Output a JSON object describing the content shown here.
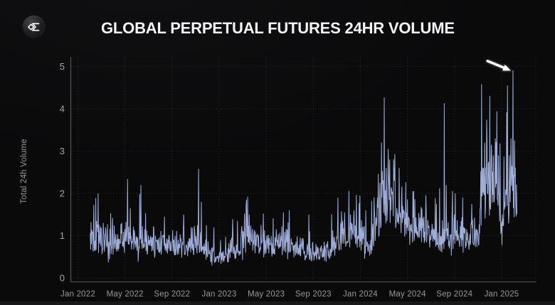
{
  "title": "GLOBAL PERPETUAL FUTURES 24HR VOLUME",
  "logo": {
    "icon": "sigma-diamond"
  },
  "colors": {
    "background": "#0a0a0b",
    "line": "#a6b7e4",
    "grid": "#2d2d2d",
    "axis": "#4d4d4d",
    "title": "#f4f4f6",
    "y_tick_label": "#a3a3a3",
    "x_tick_label": "#969696",
    "axis_name": "#959595",
    "arrow": "#ffffff",
    "footer_band": "#18181a"
  },
  "chart_data": {
    "type": "line",
    "title": "GLOBAL PERPETUAL FUTURES 24HR VOLUME",
    "ylabel": "Total 24h Volume",
    "ylim": [
      0,
      5
    ],
    "y_ticks": [
      0,
      1,
      2,
      3,
      4,
      5
    ],
    "x_ticks": [
      "Jan 2022",
      "May 2022",
      "Sep 2022",
      "Jan 2023",
      "May 2023",
      "Sep 2023",
      "Jan 2024",
      "May 2024",
      "Sep 2024",
      "Jan 2025"
    ],
    "x_tick_interval_months": 4,
    "grid": "dotted",
    "legend": "none",
    "series_name": "Global perpetual futures 24h volume",
    "x_unit": "months since Jan 2022",
    "x_range_data": [
      1.05,
      37.3
    ],
    "points_per_month": 30,
    "baseline_anchors": [
      [
        1.05,
        1.1
      ],
      [
        1.4,
        0.92
      ],
      [
        2.2,
        0.85
      ],
      [
        3.2,
        0.8
      ],
      [
        4.0,
        0.95
      ],
      [
        4.6,
        0.9
      ],
      [
        5.6,
        0.85
      ],
      [
        6.6,
        0.75
      ],
      [
        7.6,
        0.82
      ],
      [
        8.6,
        0.72
      ],
      [
        9.6,
        0.72
      ],
      [
        10.1,
        0.9
      ],
      [
        10.6,
        0.78
      ],
      [
        11.4,
        0.55
      ],
      [
        12.2,
        0.45
      ],
      [
        13.0,
        0.6
      ],
      [
        13.9,
        0.85
      ],
      [
        14.5,
        0.95
      ],
      [
        15.3,
        0.82
      ],
      [
        16.3,
        0.75
      ],
      [
        17.3,
        0.82
      ],
      [
        18.3,
        0.75
      ],
      [
        19.3,
        0.62
      ],
      [
        20.3,
        0.55
      ],
      [
        21.3,
        0.62
      ],
      [
        22.0,
        0.85
      ],
      [
        22.8,
        0.95
      ],
      [
        23.7,
        1.0
      ],
      [
        24.2,
        1.0
      ],
      [
        24.7,
        0.7
      ],
      [
        25.2,
        1.0
      ],
      [
        25.6,
        1.35
      ],
      [
        25.95,
        1.8
      ],
      [
        26.3,
        2.0
      ],
      [
        26.7,
        1.7
      ],
      [
        27.1,
        1.55
      ],
      [
        27.6,
        1.35
      ],
      [
        28.4,
        1.15
      ],
      [
        29.4,
        1.05
      ],
      [
        30.4,
        0.95
      ],
      [
        31.3,
        0.9
      ],
      [
        32.0,
        1.0
      ],
      [
        32.7,
        0.95
      ],
      [
        33.6,
        0.85
      ],
      [
        34.0,
        1.1
      ],
      [
        34.3,
        1.6
      ],
      [
        34.6,
        1.9
      ],
      [
        35.0,
        1.8
      ],
      [
        35.45,
        2.0
      ],
      [
        35.8,
        1.45
      ],
      [
        36.1,
        1.3
      ],
      [
        36.35,
        1.8
      ],
      [
        36.6,
        2.0
      ],
      [
        36.9,
        2.25
      ],
      [
        37.05,
        1.9
      ],
      [
        37.3,
        1.35
      ]
    ],
    "event_spikes": [
      [
        1.72,
        2.0
      ],
      [
        2.95,
        1.42
      ],
      [
        4.23,
        2.34
      ],
      [
        4.45,
        1.65
      ],
      [
        5.35,
        2.2
      ],
      [
        7.35,
        1.45
      ],
      [
        9.0,
        1.5
      ],
      [
        10.27,
        2.58
      ],
      [
        10.5,
        1.8
      ],
      [
        13.55,
        1.35
      ],
      [
        14.32,
        1.85
      ],
      [
        14.55,
        1.5
      ],
      [
        15.75,
        1.52
      ],
      [
        17.45,
        1.55
      ],
      [
        17.95,
        1.6
      ],
      [
        19.62,
        1.5
      ],
      [
        22.1,
        1.9
      ],
      [
        22.65,
        1.55
      ],
      [
        23.45,
        1.6
      ],
      [
        23.95,
        1.95
      ],
      [
        24.45,
        1.6
      ],
      [
        25.2,
        1.6
      ],
      [
        25.45,
        1.9
      ],
      [
        25.65,
        2.25
      ],
      [
        25.8,
        3.2
      ],
      [
        26.03,
        4.27
      ],
      [
        26.2,
        2.6
      ],
      [
        26.35,
        3.05
      ],
      [
        26.5,
        2.8
      ],
      [
        26.9,
        2.3
      ],
      [
        27.3,
        2.6
      ],
      [
        28.45,
        2.05
      ],
      [
        29.55,
        1.95
      ],
      [
        30.45,
        1.75
      ],
      [
        31.12,
        4.13
      ],
      [
        31.3,
        2.2
      ],
      [
        31.8,
        1.6
      ],
      [
        32.7,
        1.9
      ],
      [
        33.45,
        1.75
      ],
      [
        34.31,
        4.58
      ],
      [
        34.45,
        2.6
      ],
      [
        34.55,
        3.2
      ],
      [
        34.75,
        3.21
      ],
      [
        34.85,
        2.7
      ],
      [
        35.0,
        4.3
      ],
      [
        35.3,
        2.9
      ],
      [
        35.45,
        3.3
      ],
      [
        35.6,
        3.94
      ],
      [
        35.72,
        2.9
      ],
      [
        36.2,
        2.87
      ],
      [
        36.5,
        4.55
      ],
      [
        36.65,
        2.9
      ],
      [
        36.8,
        3.3
      ],
      [
        36.9,
        2.5
      ],
      [
        36.98,
        4.91
      ]
    ],
    "noise": {
      "seed": 13,
      "sigma": 0.5,
      "spike_prob": 0.06,
      "spike_gain": 1.3,
      "dip_prob": 0.04,
      "dip_gain": 0.72
    },
    "annotation_arrow": {
      "points_at_month": 36.98,
      "points_at_value": 4.91
    }
  }
}
